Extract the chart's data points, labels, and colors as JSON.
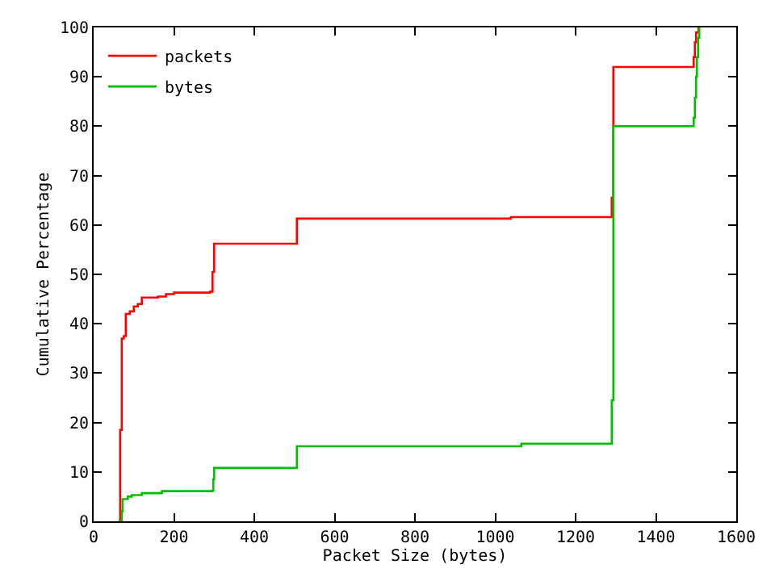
{
  "chart_data": {
    "type": "step",
    "xlabel": "Packet Size (bytes)",
    "ylabel": "Cumulative Percentage",
    "xlim": [
      0,
      1600
    ],
    "xticks": [
      0,
      200,
      400,
      600,
      800,
      1000,
      1200,
      1400,
      1600
    ],
    "ylim": [
      0,
      100
    ],
    "yticks": [
      0,
      10,
      20,
      30,
      40,
      50,
      60,
      70,
      80,
      90,
      100
    ],
    "legend": "top left",
    "marker": "none",
    "line_style": "solid",
    "series": [
      {
        "name": "packets",
        "color": "#ff0000",
        "x": [
          62,
          66,
          70,
          75,
          80,
          90,
          100,
          110,
          120,
          160,
          180,
          200,
          290,
          296,
          300,
          506,
          1039,
          1290,
          1294,
          1494,
          1497,
          1500,
          1506
        ],
        "values": [
          0,
          18.5,
          37,
          37.5,
          42,
          42.5,
          43.5,
          44,
          45.3,
          45.5,
          46,
          46.3,
          46.5,
          50.5,
          56.2,
          61.3,
          61.6,
          65.5,
          92,
          94,
          97,
          99,
          100
        ]
      },
      {
        "name": "bytes",
        "color": "#00c000",
        "x": [
          62,
          70,
          72,
          85,
          95,
          120,
          170,
          295,
          298,
          300,
          506,
          1065,
          1290,
          1294,
          1494,
          1497,
          1500,
          1502,
          1505,
          1508
        ],
        "values": [
          0,
          2,
          4.5,
          5,
          5.3,
          5.7,
          6.1,
          6.2,
          8.5,
          10.8,
          15.2,
          15.7,
          24.5,
          80,
          81.7,
          85.8,
          90,
          94,
          97.9,
          100
        ]
      }
    ]
  }
}
